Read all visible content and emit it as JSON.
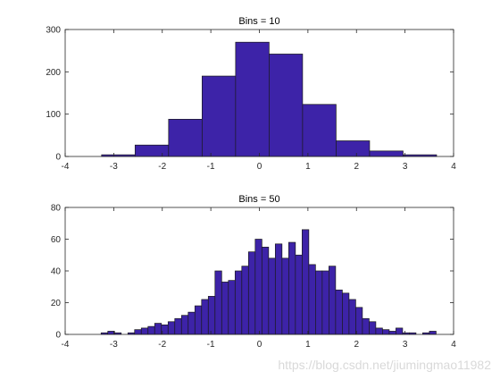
{
  "watermark": "https://blog.csdn.net/jiumingmao11982",
  "chart_data": [
    {
      "type": "bar",
      "title": "Bins = 10",
      "xlim": [
        -4,
        4
      ],
      "ylim": [
        0,
        300
      ],
      "xticks": [
        "-4",
        "-3",
        "-2",
        "-1",
        "0",
        "1",
        "2",
        "3",
        "4"
      ],
      "yticks": [
        "0",
        "100",
        "200",
        "300"
      ],
      "bar_color": "#3d23a8",
      "bin_edges": [
        -3.25,
        -2.56,
        -1.87,
        -1.18,
        -0.49,
        0.2,
        0.89,
        1.58,
        2.27,
        2.96,
        3.65
      ],
      "values": [
        4,
        27,
        88,
        190,
        270,
        242,
        123,
        37,
        13,
        4
      ]
    },
    {
      "type": "bar",
      "title": "Bins = 50",
      "xlim": [
        -4,
        4
      ],
      "ylim": [
        0,
        80
      ],
      "xticks": [
        "-4",
        "-3",
        "-2",
        "-1",
        "0",
        "1",
        "2",
        "3",
        "4"
      ],
      "yticks": [
        "0",
        "20",
        "40",
        "60",
        "80"
      ],
      "bar_color": "#3d23a8",
      "bin_edges": [
        -3.26,
        -3.122,
        -2.984,
        -2.846,
        -2.708,
        -2.57,
        -2.432,
        -2.294,
        -2.156,
        -2.018,
        -1.88,
        -1.742,
        -1.604,
        -1.466,
        -1.328,
        -1.19,
        -1.052,
        -0.914,
        -0.776,
        -0.638,
        -0.5,
        -0.362,
        -0.224,
        -0.086,
        0.052,
        0.19,
        0.328,
        0.466,
        0.604,
        0.742,
        0.88,
        1.018,
        1.156,
        1.294,
        1.432,
        1.57,
        1.708,
        1.846,
        1.984,
        2.122,
        2.26,
        2.398,
        2.536,
        2.674,
        2.812,
        2.95,
        3.088,
        3.226,
        3.364,
        3.502,
        3.64
      ],
      "values": [
        1,
        2,
        1,
        0,
        1,
        3,
        4,
        5,
        7,
        6,
        8,
        10,
        12,
        14,
        18,
        22,
        24,
        40,
        33,
        34,
        40,
        43,
        52,
        60,
        55,
        48,
        57,
        48,
        58,
        50,
        66,
        44,
        40,
        40,
        43,
        28,
        26,
        22,
        17,
        10,
        8,
        4,
        3,
        2,
        4,
        1,
        1,
        0,
        1,
        2
      ]
    }
  ]
}
